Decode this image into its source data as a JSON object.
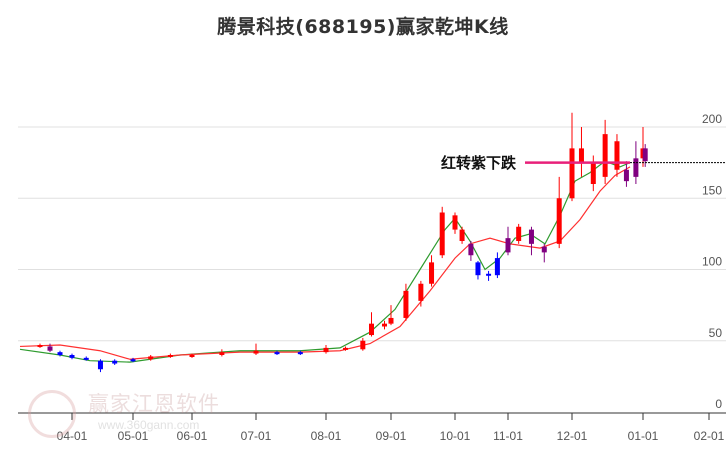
{
  "title": "腾景科技(688195)赢家乾坤K线",
  "annotation": {
    "label": "红转紫下跌",
    "price": 175
  },
  "watermark": {
    "brand": "赢家江恩软件",
    "url": "www.360gann.com",
    "logo_chars": [
      "江",
      "赢",
      "恩",
      "家"
    ]
  },
  "colors": {
    "up": "#ff0000",
    "down": "#0000ff",
    "purple": "#800080",
    "ma_short": "#2e9b2e",
    "ma_long": "#ff3030",
    "annotation_line": "#e8207a",
    "grid": "#e0e0e0"
  },
  "chart_data": {
    "type": "candlestick",
    "title": "腾景科技(688195)赢家乾坤K线",
    "xlabel": "",
    "ylabel": "",
    "ylim": [
      0,
      200
    ],
    "yticks": [
      0,
      50,
      100,
      150,
      200
    ],
    "xticks": [
      "04-01",
      "05-01",
      "06-01",
      "07-01",
      "08-01",
      "09-01",
      "10-01",
      "11-01",
      "12-01",
      "01-01",
      "02-01"
    ],
    "grid": true,
    "reference_line": {
      "value": 175,
      "style": "dashed",
      "label": "红转紫下跌"
    },
    "series": [
      {
        "name": "candles",
        "points": [
          {
            "x": "03-15",
            "open": 46,
            "close": 47,
            "high": 48,
            "low": 45,
            "c": "up"
          },
          {
            "x": "03-20",
            "open": 46,
            "close": 43,
            "high": 48,
            "low": 42,
            "c": "purple"
          },
          {
            "x": "03-25",
            "open": 42,
            "close": 40,
            "high": 43,
            "low": 39,
            "c": "down"
          },
          {
            "x": "04-01",
            "open": 40,
            "close": 38,
            "high": 41,
            "low": 37,
            "c": "down"
          },
          {
            "x": "04-08",
            "open": 38,
            "close": 37,
            "high": 39,
            "low": 36,
            "c": "down"
          },
          {
            "x": "04-15",
            "open": 36,
            "close": 30,
            "high": 37,
            "low": 28,
            "c": "down"
          },
          {
            "x": "04-22",
            "open": 34,
            "close": 36,
            "high": 37,
            "low": 33,
            "c": "down"
          },
          {
            "x": "05-01",
            "open": 36,
            "close": 37,
            "high": 38,
            "low": 35,
            "c": "down"
          },
          {
            "x": "05-10",
            "open": 37,
            "close": 39,
            "high": 40,
            "low": 36,
            "c": "up"
          },
          {
            "x": "05-20",
            "open": 39,
            "close": 40,
            "high": 41,
            "low": 38,
            "c": "up"
          },
          {
            "x": "06-01",
            "open": 39,
            "close": 40,
            "high": 41,
            "low": 38,
            "c": "up"
          },
          {
            "x": "06-15",
            "open": 40,
            "close": 42,
            "high": 44,
            "low": 39,
            "c": "up"
          },
          {
            "x": "07-01",
            "open": 41,
            "close": 43,
            "high": 48,
            "low": 40,
            "c": "up"
          },
          {
            "x": "07-10",
            "open": 42,
            "close": 41,
            "high": 43,
            "low": 40,
            "c": "down"
          },
          {
            "x": "07-20",
            "open": 41,
            "close": 42,
            "high": 43,
            "low": 40,
            "c": "down"
          },
          {
            "x": "08-01",
            "open": 42,
            "close": 45,
            "high": 47,
            "low": 41,
            "c": "up"
          },
          {
            "x": "08-10",
            "open": 44,
            "close": 45,
            "high": 46,
            "low": 43,
            "c": "up"
          },
          {
            "x": "08-18",
            "open": 44,
            "close": 50,
            "high": 52,
            "low": 43,
            "c": "up"
          },
          {
            "x": "08-22",
            "open": 54,
            "close": 62,
            "high": 70,
            "low": 53,
            "c": "up"
          },
          {
            "x": "08-28",
            "open": 60,
            "close": 62,
            "high": 64,
            "low": 58,
            "c": "up"
          },
          {
            "x": "09-01",
            "open": 62,
            "close": 66,
            "high": 75,
            "low": 61,
            "c": "up"
          },
          {
            "x": "09-08",
            "open": 66,
            "close": 85,
            "high": 90,
            "low": 64,
            "c": "up"
          },
          {
            "x": "09-15",
            "open": 78,
            "close": 90,
            "high": 92,
            "low": 74,
            "c": "up"
          },
          {
            "x": "09-20",
            "open": 90,
            "close": 105,
            "high": 110,
            "low": 88,
            "c": "up"
          },
          {
            "x": "09-25",
            "open": 110,
            "close": 140,
            "high": 144,
            "low": 108,
            "c": "up"
          },
          {
            "x": "10-01",
            "open": 138,
            "close": 128,
            "high": 140,
            "low": 125,
            "c": "up"
          },
          {
            "x": "10-05",
            "open": 128,
            "close": 120,
            "high": 130,
            "low": 118,
            "c": "up"
          },
          {
            "x": "10-10",
            "open": 118,
            "close": 110,
            "high": 120,
            "low": 106,
            "c": "purple"
          },
          {
            "x": "10-14",
            "open": 105,
            "close": 96,
            "high": 106,
            "low": 93,
            "c": "down"
          },
          {
            "x": "10-20",
            "open": 97,
            "close": 96,
            "high": 99,
            "low": 92,
            "c": "down"
          },
          {
            "x": "10-25",
            "open": 96,
            "close": 108,
            "high": 112,
            "low": 94,
            "c": "down"
          },
          {
            "x": "11-01",
            "open": 112,
            "close": 122,
            "high": 130,
            "low": 110,
            "c": "purple"
          },
          {
            "x": "11-06",
            "open": 120,
            "close": 130,
            "high": 132,
            "low": 118,
            "c": "up"
          },
          {
            "x": "11-12",
            "open": 128,
            "close": 118,
            "high": 130,
            "low": 110,
            "c": "purple"
          },
          {
            "x": "11-18",
            "open": 116,
            "close": 112,
            "high": 118,
            "low": 105,
            "c": "purple"
          },
          {
            "x": "11-25",
            "open": 118,
            "close": 150,
            "high": 165,
            "low": 115,
            "c": "up"
          },
          {
            "x": "12-01",
            "open": 150,
            "close": 185,
            "high": 210,
            "low": 148,
            "c": "up"
          },
          {
            "x": "12-05",
            "open": 185,
            "close": 175,
            "high": 200,
            "low": 165,
            "c": "up"
          },
          {
            "x": "12-10",
            "open": 175,
            "close": 160,
            "high": 180,
            "low": 155,
            "c": "up"
          },
          {
            "x": "12-15",
            "open": 165,
            "close": 195,
            "high": 205,
            "low": 160,
            "c": "up"
          },
          {
            "x": "12-20",
            "open": 190,
            "close": 170,
            "high": 195,
            "low": 165,
            "c": "up"
          },
          {
            "x": "12-24",
            "open": 170,
            "close": 162,
            "high": 176,
            "low": 158,
            "c": "purple"
          },
          {
            "x": "12-28",
            "open": 165,
            "close": 178,
            "high": 190,
            "low": 160,
            "c": "purple"
          },
          {
            "x": "12-31",
            "open": 178,
            "close": 185,
            "high": 200,
            "low": 172,
            "c": "up"
          },
          {
            "x": "01-02",
            "open": 185,
            "close": 176,
            "high": 188,
            "low": 172,
            "c": "purple"
          }
        ]
      },
      {
        "name": "MA short (green)",
        "points": [
          [
            20,
            44
          ],
          [
            60,
            40
          ],
          [
            90,
            36
          ],
          [
            130,
            35
          ],
          [
            180,
            40
          ],
          [
            240,
            43
          ],
          [
            300,
            43
          ],
          [
            340,
            45
          ],
          [
            370,
            56
          ],
          [
            395,
            72
          ],
          [
            420,
            100
          ],
          [
            445,
            128
          ],
          [
            455,
            136
          ],
          [
            470,
            120
          ],
          [
            485,
            100
          ],
          [
            500,
            108
          ],
          [
            515,
            122
          ],
          [
            530,
            125
          ],
          [
            545,
            118
          ],
          [
            560,
            138
          ],
          [
            575,
            162
          ],
          [
            590,
            168
          ],
          [
            605,
            176
          ],
          [
            620,
            172
          ],
          [
            630,
            175
          ]
        ]
      },
      {
        "name": "MA long (red)",
        "points": [
          [
            20,
            46
          ],
          [
            60,
            47
          ],
          [
            100,
            43
          ],
          [
            130,
            37
          ],
          [
            180,
            40
          ],
          [
            240,
            42
          ],
          [
            300,
            42
          ],
          [
            340,
            43
          ],
          [
            370,
            48
          ],
          [
            400,
            60
          ],
          [
            430,
            85
          ],
          [
            455,
            108
          ],
          [
            470,
            118
          ],
          [
            490,
            122
          ],
          [
            510,
            118
          ],
          [
            540,
            115
          ],
          [
            560,
            120
          ],
          [
            580,
            135
          ],
          [
            600,
            155
          ],
          [
            615,
            166
          ],
          [
            630,
            172
          ]
        ]
      }
    ]
  }
}
